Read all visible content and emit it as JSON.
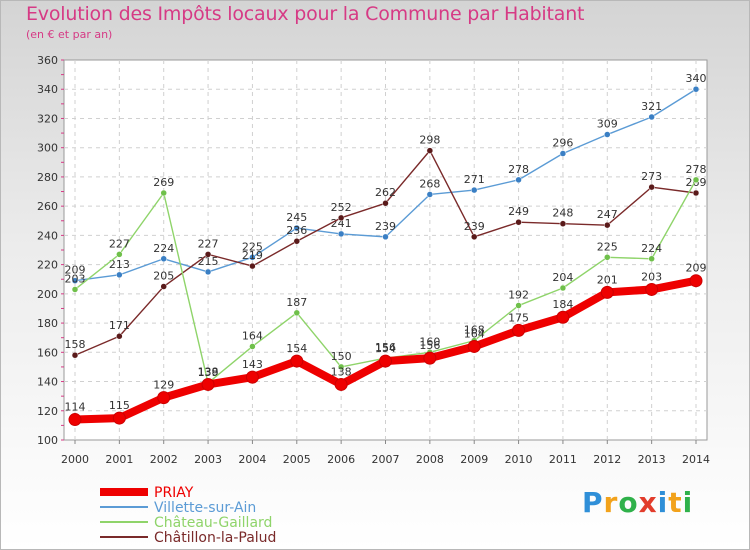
{
  "header": {
    "title": "Evolution des Impôts locaux pour la Commune par Habitant",
    "subtitle": "(en € et par an)"
  },
  "logo": {
    "text": "Proxiti",
    "colors": [
      "#2f8fd8",
      "#f2a21b",
      "#2fb14a",
      "#e23c2b",
      "#2f8fd8",
      "#f2a21b",
      "#2fb14a"
    ]
  },
  "chart_data": {
    "type": "line",
    "title": "Evolution des Impôts locaux pour la Commune par Habitant",
    "subtitle": "(en € et par an)",
    "x": [
      2000,
      2001,
      2002,
      2003,
      2004,
      2005,
      2006,
      2007,
      2008,
      2009,
      2010,
      2011,
      2012,
      2013,
      2014
    ],
    "ylim": [
      100,
      360
    ],
    "yticks": [
      100,
      120,
      140,
      160,
      180,
      200,
      220,
      240,
      260,
      280,
      300,
      320,
      340,
      360
    ],
    "grid": true,
    "legend": "bottom-left",
    "series": [
      {
        "name": "Villette-sur-Ain",
        "color": "#5b9bd5",
        "marker": "#3a7fc4",
        "values": [
          209,
          213,
          224,
          215,
          225,
          245,
          241,
          239,
          268,
          271,
          278,
          296,
          309,
          321,
          340
        ]
      },
      {
        "name": "Châtillon-la-Palud",
        "color": "#7a2a2a",
        "marker": "#5a1a1a",
        "values": [
          158,
          171,
          205,
          227,
          219,
          236,
          252,
          262,
          298,
          239,
          249,
          248,
          247,
          273,
          269
        ]
      },
      {
        "name": "Château-Gaillard",
        "color": "#8fd46a",
        "marker": "#6fc04a",
        "values": [
          203,
          227,
          269,
          139,
          164,
          187,
          150,
          156,
          160,
          168,
          192,
          204,
          225,
          224,
          278
        ]
      },
      {
        "name": "PRIAY",
        "color": "#ee0000",
        "marker": "#ee0000",
        "values": [
          114,
          115,
          129,
          138,
          143,
          154,
          138,
          154,
          156,
          164,
          175,
          184,
          201,
          203,
          209
        ]
      }
    ]
  }
}
